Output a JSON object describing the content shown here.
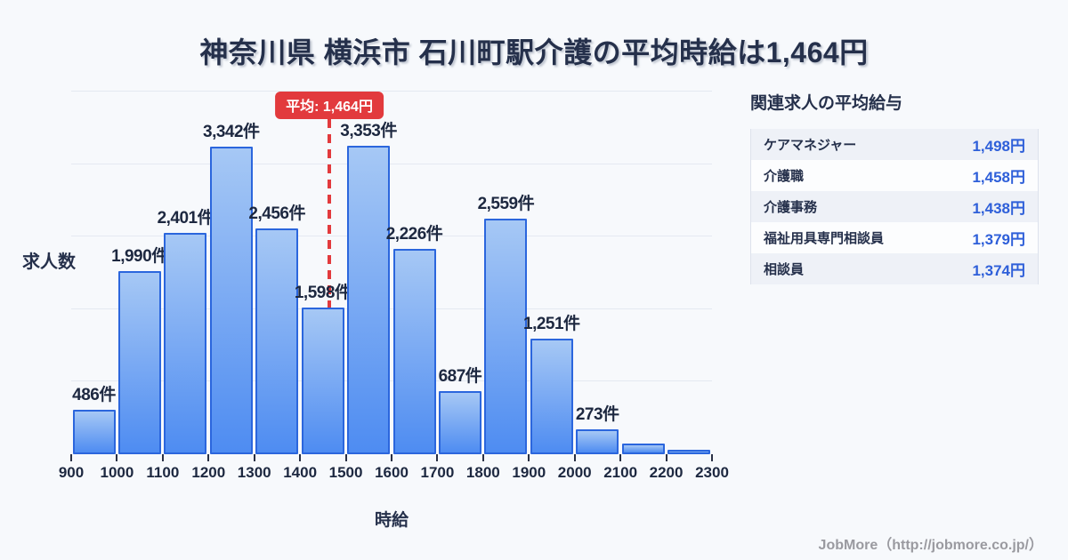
{
  "title": "神奈川県 横浜市 石川町駅介護の平均時給は1,464円",
  "chart_data": {
    "type": "bar",
    "xlabel": "時給",
    "ylabel": "求人数",
    "x_ticks": [
      900,
      1000,
      1100,
      1200,
      1300,
      1400,
      1500,
      1600,
      1700,
      1800,
      1900,
      2000,
      2100,
      2200,
      2300
    ],
    "bin_edges": [
      900,
      1000,
      1100,
      1200,
      1300,
      1400,
      1500,
      1600,
      1700,
      1800,
      1900,
      2000,
      2100,
      2200,
      2300
    ],
    "values": [
      486,
      1990,
      2401,
      3342,
      2456,
      1598,
      3353,
      2226,
      687,
      2559,
      1251,
      273,
      120,
      50
    ],
    "bar_labels": [
      "486件",
      "1,990件",
      "2,401件",
      "3,342件",
      "2,456件",
      "1,598件",
      "3,353件",
      "2,226件",
      "687件",
      "2,559件",
      "1,251件",
      "273件",
      "",
      ""
    ],
    "ylim": [
      0,
      3940
    ],
    "grid": "horizontal",
    "average": {
      "value": 1464,
      "label": "平均: 1,464円"
    },
    "colors": {
      "bar_top": "#a6c8f5",
      "bar_bottom": "#4e8cf2",
      "bar_border": "#2b66dd",
      "average_line": "#e23a3d",
      "value_text": "#2e5fd9",
      "background": "#f7f9fc"
    }
  },
  "related": {
    "heading": "関連求人の平均給与",
    "rows": [
      {
        "label": "ケアマネジャー",
        "value": "1,498円"
      },
      {
        "label": "介護職",
        "value": "1,458円"
      },
      {
        "label": "介護事務",
        "value": "1,438円"
      },
      {
        "label": "福祉用具専門相談員",
        "value": "1,379円"
      },
      {
        "label": "相談員",
        "value": "1,374円"
      }
    ]
  },
  "footer": {
    "credit": "JobMore（http://jobmore.co.jp/）"
  }
}
